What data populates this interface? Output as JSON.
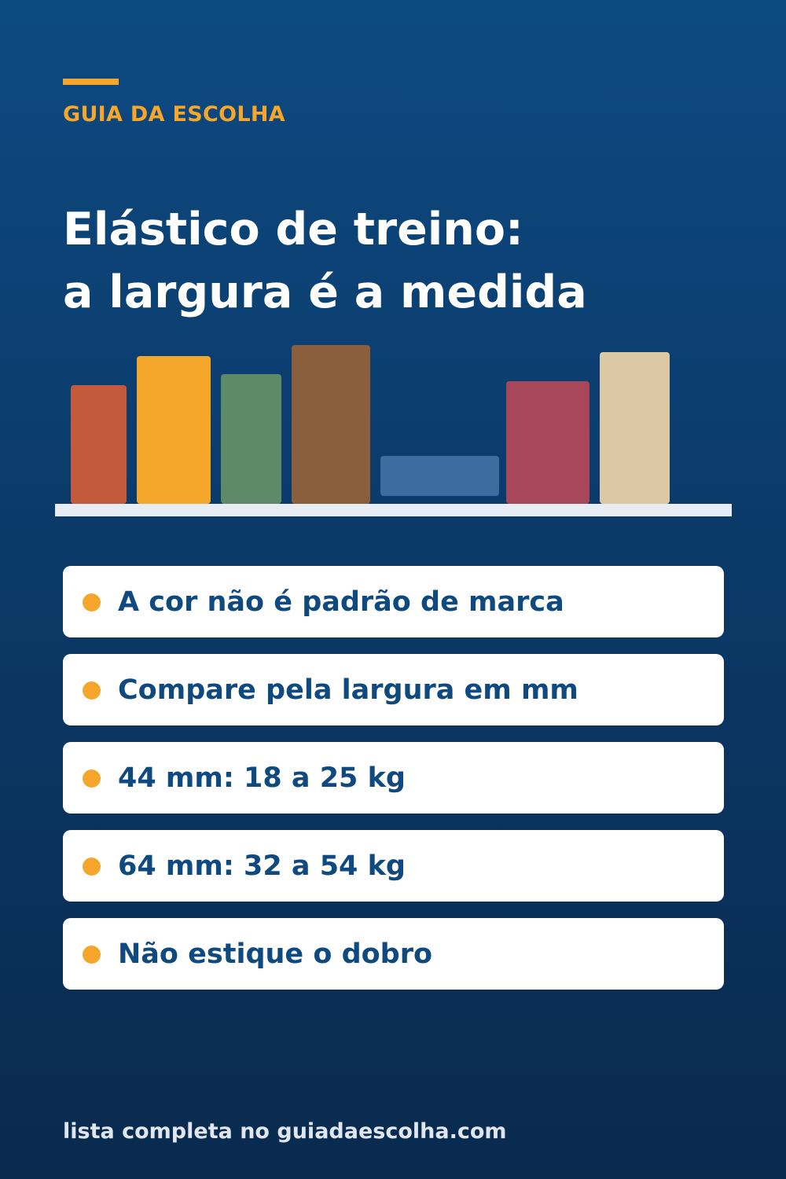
{
  "header": {
    "brand": "GUIA DA ESCOLHA",
    "title_line_1": "Elástico de treino:",
    "title_line_2": "a largura é a medida",
    "accent_color": "#f4a72a"
  },
  "bands": [
    {
      "name": "orange-red",
      "color": "#c45a3c"
    },
    {
      "name": "yellow",
      "color": "#f4a72a"
    },
    {
      "name": "green",
      "color": "#5e8a6a"
    },
    {
      "name": "brown",
      "color": "#8b5e3c"
    },
    {
      "name": "blue",
      "color": "#3d6da0"
    },
    {
      "name": "wine",
      "color": "#a8475a"
    },
    {
      "name": "beige",
      "color": "#dcc8a4"
    }
  ],
  "tips": [
    {
      "text": "A cor não é padrão de marca"
    },
    {
      "text": "Compare pela largura em mm"
    },
    {
      "text": "44 mm: 18 a 25 kg"
    },
    {
      "text": "64 mm: 32 a 54 kg"
    },
    {
      "text": "Não estique o dobro"
    }
  ],
  "footer": {
    "text": "lista completa no guiadaescolha.com"
  }
}
